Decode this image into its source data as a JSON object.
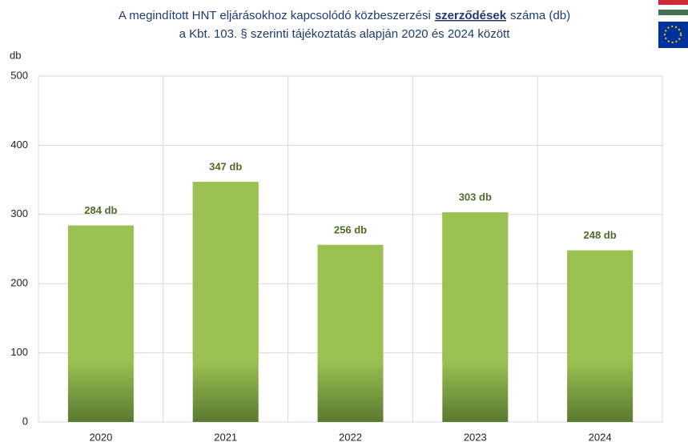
{
  "chart_data": {
    "type": "bar",
    "title": [
      [
        "A megindított HNT eljárásokhoz kapcsolódó közbeszerzési",
        "szerződések",
        "száma (db)"
      ],
      "a Kbt. 103. § szerinti tájékoztatás alapján 2020 és 2024 között"
    ],
    "y_label": "db",
    "categories": [
      "2020",
      "2021",
      "2022",
      "2023",
      "2024"
    ],
    "values": [
      284,
      347,
      256,
      303,
      248
    ],
    "value_labels": [
      "284 db",
      "347 db",
      "256 db",
      "303 db",
      "248 db"
    ],
    "color": "#9bc152",
    "ylim": [
      0,
      500
    ],
    "yticks": [
      0,
      100,
      200,
      300,
      400,
      500
    ],
    "grid": true
  }
}
